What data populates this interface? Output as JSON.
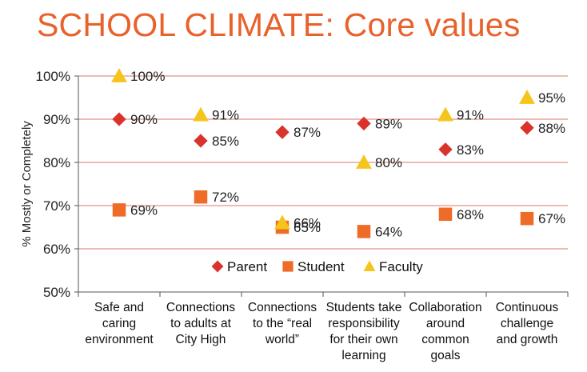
{
  "title": "SCHOOL CLIMATE: Core values",
  "colors": {
    "title": "#e8622c",
    "parent": "#d9332b",
    "student": "#ee6b28",
    "faculty": "#f6c51b",
    "grid": "#d97a6a"
  },
  "chart_data": {
    "type": "scatter",
    "title": "SCHOOL CLIMATE: Core values",
    "ylabel": "% Mostly or Completely",
    "xlabel": "",
    "ylim": [
      50,
      100
    ],
    "yticks": [
      "50%",
      "60%",
      "70%",
      "80%",
      "90%",
      "100%"
    ],
    "ytick_values": [
      50,
      60,
      70,
      80,
      90,
      100
    ],
    "grid": true,
    "legend_position": "inside-bottom-center",
    "categories": [
      [
        "Safe and",
        "caring",
        "environment"
      ],
      [
        "Connections",
        "to adults at",
        "City High"
      ],
      [
        "Connections",
        "to the “real",
        "world”"
      ],
      [
        "Students take",
        "responsibility",
        "for their own",
        "learning"
      ],
      [
        "Collaboration",
        "around",
        "common",
        "goals"
      ],
      [
        "Continuous",
        "challenge",
        "and growth"
      ]
    ],
    "series": [
      {
        "name": "Parent",
        "marker": "diamond",
        "values": [
          90,
          85,
          87,
          89,
          83,
          88
        ],
        "labels": [
          "90%",
          "85%",
          "87%",
          "89%",
          "83%",
          "88%"
        ]
      },
      {
        "name": "Student",
        "marker": "square",
        "values": [
          69,
          72,
          65,
          64,
          68,
          67
        ],
        "labels": [
          "69%",
          "72%",
          "65%",
          "64%",
          "68%",
          "67%"
        ]
      },
      {
        "name": "Faculty",
        "marker": "triangle",
        "values": [
          100,
          91,
          66,
          80,
          91,
          95
        ],
        "labels": [
          "100%",
          "91%",
          "66%",
          "80%",
          "91%",
          "95%"
        ]
      }
    ]
  }
}
